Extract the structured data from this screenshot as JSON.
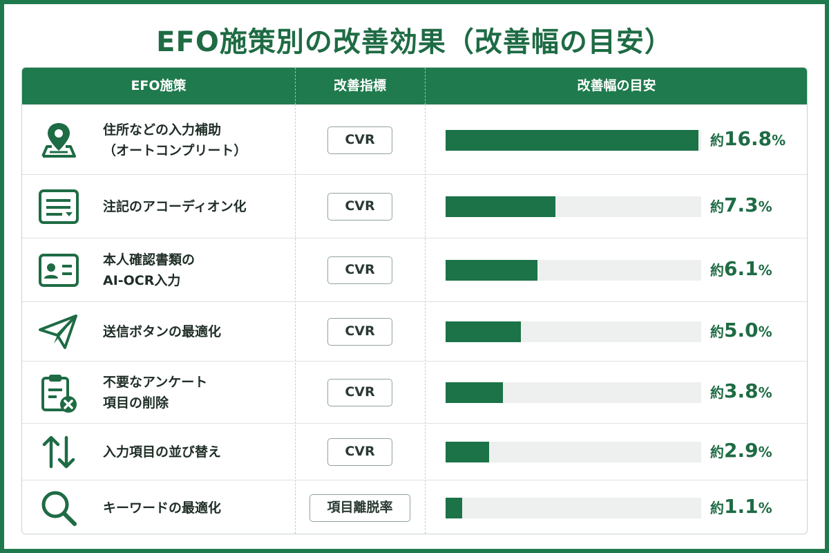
{
  "title": "EFO施策別の改善効果（改善幅の目安）",
  "colors": {
    "brand": "#1e7a4c",
    "bar": "#1b7347",
    "track": "#eef0ef",
    "header_bg": "#1f7a4d"
  },
  "headers": {
    "measure": "EFO施策",
    "metric": "改善指標",
    "range": "改善幅の目安"
  },
  "value_prefix": "約",
  "value_suffix": "%",
  "rows": [
    {
      "icon": "map-pin-icon",
      "label_lines": [
        "住所などの入力補助",
        "（オートコンプリート）"
      ],
      "metric": "CVR",
      "value": "16.8"
    },
    {
      "icon": "note-list-icon",
      "label_lines": [
        "注記のアコーディオン化"
      ],
      "metric": "CVR",
      "value": "7.3"
    },
    {
      "icon": "id-card-icon",
      "label_lines": [
        "本人確認書類の",
        "AI-OCR入力"
      ],
      "metric": "CVR",
      "value": "6.1"
    },
    {
      "icon": "paper-plane-icon",
      "label_lines": [
        "送信ボタンの最適化"
      ],
      "metric": "CVR",
      "value": "5.0"
    },
    {
      "icon": "clipboard-remove-icon",
      "label_lines": [
        "不要なアンケート",
        "項目の削除"
      ],
      "metric": "CVR",
      "value": "3.8"
    },
    {
      "icon": "sort-arrows-icon",
      "label_lines": [
        "入力項目の並び替え"
      ],
      "metric": "CVR",
      "value": "2.9"
    },
    {
      "icon": "search-icon",
      "label_lines": [
        "キーワードの最適化"
      ],
      "metric": "項目離脱率",
      "value": "1.1"
    }
  ],
  "chart_data": {
    "type": "bar",
    "orientation": "horizontal",
    "categories": [
      "住所などの入力補助（オートコンプリート）",
      "注記のアコーディオン化",
      "本人確認書類のAI-OCR入力",
      "送信ボタンの最適化",
      "不要なアンケート項目の削除",
      "入力項目の並び替え",
      "キーワードの最適化"
    ],
    "values": [
      16.8,
      7.3,
      6.1,
      5.0,
      3.8,
      2.9,
      1.1
    ],
    "title": "EFO施策別の改善効果（改善幅の目安）",
    "xlim": [
      0,
      17
    ]
  }
}
